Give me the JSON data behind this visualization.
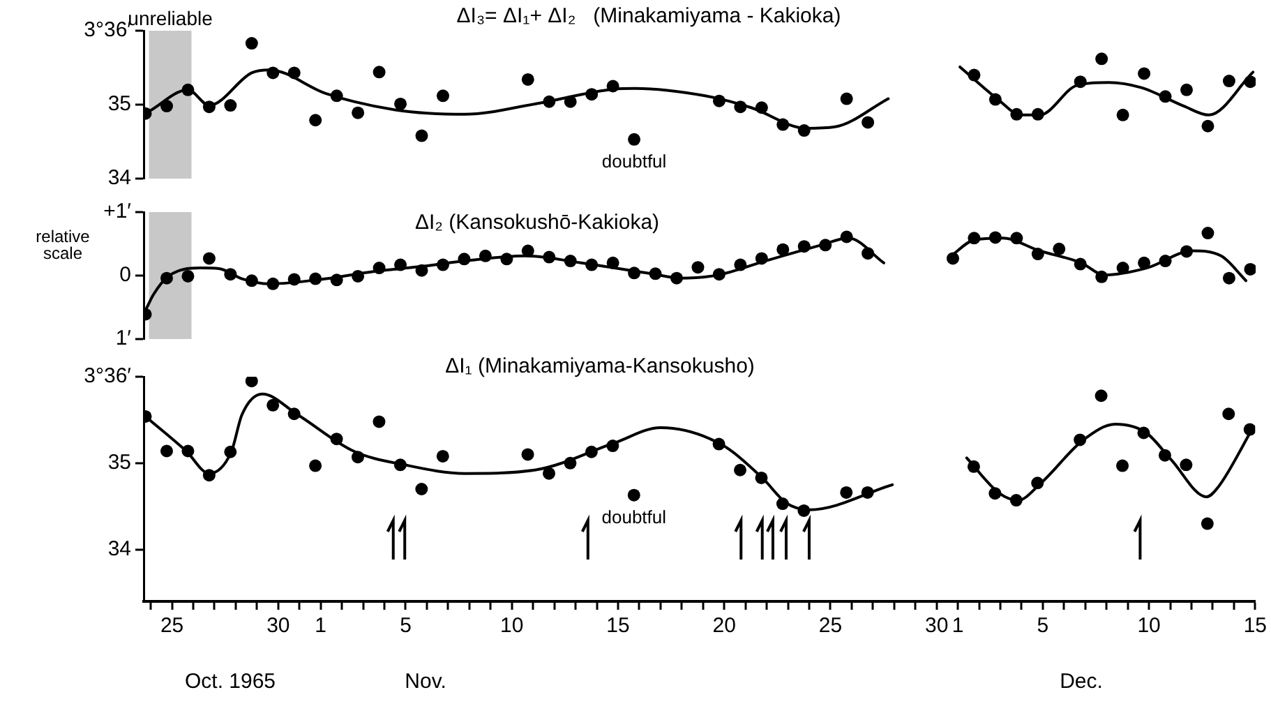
{
  "chart_data": [
    {
      "type": "scatter",
      "title": "ΔI₃= ΔI₁+ ΔI₂   (Minakamiyama - Kakioka)",
      "xlim": [
        "1965-10-23T16:00",
        "1965-12-15"
      ],
      "ylim": [
        34,
        36
      ],
      "yticks": [
        {
          "value": 36,
          "label": "3°36′"
        },
        35,
        34
      ],
      "tick_labels": "y",
      "series": [
        {
          "type": "scatter",
          "color": "#000000",
          "marker": "circle",
          "x": [
            "1965-10-23T18:00",
            "1965-10-24T18:00",
            "1965-10-25T18:00",
            "1965-10-26T18:00",
            "1965-10-27T18:00",
            "1965-10-28T18:00",
            "1965-10-29T18:00",
            "1965-10-30T18:00",
            "1965-10-31T18:00",
            "1965-11-01T18:00",
            "1965-11-02T18:00",
            "1965-11-03T18:00",
            "1965-11-04T18:00",
            "1965-11-05T18:00",
            "1965-11-06T18:00",
            "1965-11-10T18:00",
            "1965-11-11T18:00",
            "1965-11-12T18:00",
            "1965-11-13T18:00",
            "1965-11-14T18:00",
            "1965-11-15T18:00",
            "1965-11-19T18:00",
            "1965-11-20T18:00",
            "1965-11-21T18:00",
            "1965-11-22T18:00",
            "1965-11-23T18:00",
            "1965-11-25T18:00",
            "1965-11-26T18:00",
            "1965-12-01T18:00",
            "1965-12-02T18:00",
            "1965-12-03T18:00",
            "1965-12-04T18:00",
            "1965-12-06T18:00",
            "1965-12-07T18:00",
            "1965-12-08T18:00",
            "1965-12-09T18:00",
            "1965-12-10T18:00",
            "1965-12-11T18:00",
            "1965-12-12T18:00",
            "1965-12-13T18:00",
            "1965-12-14T18:00"
          ],
          "values": [
            34.88,
            34.98,
            35.2,
            34.97,
            34.99,
            35.83,
            35.43,
            35.43,
            34.79,
            35.12,
            34.89,
            35.44,
            35.01,
            34.58,
            35.12,
            35.34,
            35.04,
            35.04,
            35.14,
            35.25,
            34.53,
            35.05,
            34.97,
            34.96,
            34.73,
            34.65,
            35.08,
            34.76,
            35.4,
            35.07,
            34.87,
            34.87,
            35.31,
            35.62,
            34.86,
            35.42,
            35.11,
            35.2,
            34.71,
            35.32,
            35.31
          ]
        },
        {
          "type": "line",
          "color": "#000000",
          "marker": "none",
          "x": [
            "1965-10-23T22:00",
            "1965-10-25T18:00",
            "1965-10-26T18:00",
            "1965-10-28T18:00",
            "1965-10-29T14:00",
            "1965-11-01T06:00",
            "1965-11-04T12:00",
            "1965-11-07T19:00",
            "1965-11-11T02:00",
            "1965-11-14T19:00",
            "1965-11-15T19:00",
            "1965-11-19T02:00",
            "1965-11-21T06:00",
            "1965-11-23T21:00",
            "1965-11-25T05:00",
            "1965-11-27T17:00",
            "1965-11-29T00:00",
            "1965-12-01T02:00",
            "1965-12-02T21:00",
            "1965-12-03T23:00",
            "1965-12-04T20:00",
            "1965-12-06T14:00",
            "1965-12-08T02:00",
            "1965-12-09T15:00",
            "1965-12-11T15:00",
            "1965-12-12T19:00",
            "1965-12-14T21:00"
          ],
          "values": [
            34.91,
            35.2,
            34.99,
            35.43,
            35.47,
            35.15,
            34.93,
            34.87,
            35.01,
            35.21,
            35.22,
            35.12,
            34.96,
            34.68,
            34.7,
            35.08,
            null,
            35.51,
            35.07,
            34.86,
            34.86,
            35.26,
            35.3,
            35.23,
            34.98,
            34.86,
            35.44
          ]
        }
      ],
      "bands": [
        {
          "axis": "x",
          "from": "1965-10-23T22:00",
          "to": "1965-10-25T22:00",
          "label": "unreliable"
        }
      ],
      "annotations": [
        {
          "text": "doubtful",
          "x": "1965-11-15T18:00",
          "y": 34.53
        }
      ]
    },
    {
      "type": "scatter",
      "title": "ΔI₂ (Kansokushō-Kakioka)",
      "ylabel": "relative scale",
      "xlim": [
        "1965-10-23T16:00",
        "1965-12-15"
      ],
      "ylim": [
        -1,
        1
      ],
      "yticks": [
        {
          "value": 1,
          "label": "+1′"
        },
        0,
        {
          "value": -1,
          "label": "1′"
        }
      ],
      "tick_labels": "y",
      "series": [
        {
          "type": "scatter",
          "color": "#000000",
          "marker": "circle",
          "x": [
            "1965-10-23T18:00",
            "1965-10-24T18:00",
            "1965-10-25T18:00",
            "1965-10-26T18:00",
            "1965-10-27T18:00",
            "1965-10-28T18:00",
            "1965-10-29T18:00",
            "1965-10-30T18:00",
            "1965-10-31T18:00",
            "1965-11-01T18:00",
            "1965-11-02T18:00",
            "1965-11-03T18:00",
            "1965-11-04T18:00",
            "1965-11-05T18:00",
            "1965-11-06T18:00",
            "1965-11-07T18:00",
            "1965-11-08T18:00",
            "1965-11-09T18:00",
            "1965-11-10T18:00",
            "1965-11-11T18:00",
            "1965-11-12T18:00",
            "1965-11-13T18:00",
            "1965-11-14T18:00",
            "1965-11-15T18:00",
            "1965-11-16T18:00",
            "1965-11-17T18:00",
            "1965-11-18T18:00",
            "1965-11-19T18:00",
            "1965-11-20T18:00",
            "1965-11-21T18:00",
            "1965-11-22T18:00",
            "1965-11-23T18:00",
            "1965-11-24T18:00",
            "1965-11-25T18:00",
            "1965-11-26T18:00",
            "1965-11-30T18:00",
            "1965-12-01T18:00",
            "1965-12-02T18:00",
            "1965-12-03T18:00",
            "1965-12-04T18:00",
            "1965-12-05T18:00",
            "1965-12-06T18:00",
            "1965-12-07T18:00",
            "1965-12-08T18:00",
            "1965-12-09T18:00",
            "1965-12-10T18:00",
            "1965-12-11T18:00",
            "1965-12-12T18:00",
            "1965-12-13T18:00",
            "1965-12-14T18:00"
          ],
          "values": [
            -0.61,
            -0.04,
            -0.01,
            0.27,
            0.02,
            -0.08,
            -0.13,
            -0.06,
            -0.05,
            -0.07,
            -0.01,
            0.12,
            0.17,
            0.08,
            0.17,
            0.26,
            0.31,
            0.26,
            0.39,
            0.29,
            0.23,
            0.17,
            0.2,
            0.04,
            0.03,
            -0.04,
            0.13,
            0.02,
            0.17,
            0.27,
            0.41,
            0.46,
            0.48,
            0.61,
            0.35,
            0.27,
            0.59,
            0.6,
            0.59,
            0.34,
            0.42,
            0.18,
            -0.02,
            0.12,
            0.2,
            0.23,
            0.38,
            0.67,
            -0.04,
            0.1
          ]
        },
        {
          "type": "line",
          "color": "#000000",
          "marker": "none",
          "x": [
            "1965-10-23T18:00",
            "1965-10-24T03:00",
            "1965-10-24T19:00",
            "1965-10-26T08:00",
            "1965-10-27T05:00",
            "1965-10-28T07:00",
            "1965-10-29T14:00",
            "1965-11-01T06:00",
            "1965-11-03T10:00",
            "1965-11-05T15:00",
            "1965-11-07T19:00",
            "1965-11-10T15:00",
            "1965-11-13T06:00",
            "1965-11-16T13:00",
            "1965-11-17T23:00",
            "1965-11-19T17:00",
            "1965-11-21T22:00",
            "1965-11-24T13:00",
            "1965-11-25T20:00",
            "1965-11-27T12:00",
            "1965-11-29T00:00",
            "1965-11-30T16:00",
            "1965-12-01T18:00",
            "1965-12-03T02:00",
            "1965-12-04T20:00",
            "1965-12-06T19:00",
            "1965-12-07T21:00",
            "1965-12-09T21:00",
            "1965-12-12T01:00",
            "1965-12-13T09:00",
            "1965-12-14T13:00"
          ],
          "values": [
            -0.55,
            -0.3,
            -0.02,
            0.12,
            0.11,
            -0.05,
            -0.13,
            -0.05,
            0.06,
            0.14,
            0.23,
            0.31,
            0.2,
            0.03,
            -0.04,
            0.01,
            0.23,
            0.48,
            0.59,
            0.2,
            null,
            0.31,
            0.56,
            0.59,
            0.39,
            0.2,
            0.01,
            0.12,
            0.39,
            0.31,
            -0.08
          ]
        }
      ],
      "bands": [
        {
          "axis": "x",
          "from": "1965-10-23T22:00",
          "to": "1965-10-25T22:00"
        }
      ]
    },
    {
      "type": "scatter",
      "title": "ΔI₁ (Minakamiyama-Kansokusho)",
      "xlim": [
        "1965-10-23T16:00",
        "1965-12-15"
      ],
      "ylim": [
        33.4,
        36
      ],
      "yticks": [
        {
          "value": 36,
          "label": "3°36′"
        },
        35,
        34
      ],
      "xticks": [
        {
          "value": "1965-10-24",
          "label": null
        },
        {
          "value": "1965-10-25",
          "label": "25"
        },
        {
          "value": "1965-10-26",
          "label": null
        },
        {
          "value": "1965-10-27",
          "label": null
        },
        {
          "value": "1965-10-28",
          "label": null
        },
        {
          "value": "1965-10-29",
          "label": null
        },
        {
          "value": "1965-10-30",
          "label": "30"
        },
        {
          "value": "1965-10-31",
          "label": null
        },
        {
          "value": "1965-11-01",
          "label": "1"
        },
        {
          "value": "1965-11-02",
          "label": null
        },
        {
          "value": "1965-11-03",
          "label": null
        },
        {
          "value": "1965-11-04",
          "label": null
        },
        {
          "value": "1965-11-05",
          "label": "5"
        },
        {
          "value": "1965-11-06",
          "label": null
        },
        {
          "value": "1965-11-07",
          "label": null
        },
        {
          "value": "1965-11-08",
          "label": null
        },
        {
          "value": "1965-11-09",
          "label": null
        },
        {
          "value": "1965-11-10",
          "label": "10"
        },
        {
          "value": "1965-11-11",
          "label": null
        },
        {
          "value": "1965-11-12",
          "label": null
        },
        {
          "value": "1965-11-13",
          "label": null
        },
        {
          "value": "1965-11-14",
          "label": null
        },
        {
          "value": "1965-11-15",
          "label": "15"
        },
        {
          "value": "1965-11-16",
          "label": null
        },
        {
          "value": "1965-11-17",
          "label": null
        },
        {
          "value": "1965-11-18",
          "label": null
        },
        {
          "value": "1965-11-19",
          "label": null
        },
        {
          "value": "1965-11-20",
          "label": "20"
        },
        {
          "value": "1965-11-21",
          "label": null
        },
        {
          "value": "1965-11-22",
          "label": null
        },
        {
          "value": "1965-11-23",
          "label": null
        },
        {
          "value": "1965-11-24",
          "label": null
        },
        {
          "value": "1965-11-25",
          "label": "25"
        },
        {
          "value": "1965-11-26",
          "label": null
        },
        {
          "value": "1965-11-27",
          "label": null
        },
        {
          "value": "1965-11-28",
          "label": null
        },
        {
          "value": "1965-11-29",
          "label": null
        },
        {
          "value": "1965-11-30",
          "label": "30"
        },
        {
          "value": "1965-12-01",
          "label": "1"
        },
        {
          "value": "1965-12-02",
          "label": null
        },
        {
          "value": "1965-12-03",
          "label": null
        },
        {
          "value": "1965-12-04",
          "label": null
        },
        {
          "value": "1965-12-05",
          "label": "5"
        },
        {
          "value": "1965-12-06",
          "label": null
        },
        {
          "value": "1965-12-07",
          "label": null
        },
        {
          "value": "1965-12-08",
          "label": null
        },
        {
          "value": "1965-12-09",
          "label": null
        },
        {
          "value": "1965-12-10",
          "label": "10"
        },
        {
          "value": "1965-12-11",
          "label": null
        },
        {
          "value": "1965-12-12",
          "label": null
        },
        {
          "value": "1965-12-13",
          "label": null
        },
        {
          "value": "1965-12-14",
          "label": null
        },
        {
          "value": "1965-12-15",
          "label": "15"
        }
      ],
      "series": [
        {
          "type": "scatter",
          "color": "#000000",
          "marker": "circle",
          "x": [
            "1965-10-23T18:00",
            "1965-10-24T18:00",
            "1965-10-25T18:00",
            "1965-10-26T18:00",
            "1965-10-27T18:00",
            "1965-10-28T18:00",
            "1965-10-29T18:00",
            "1965-10-30T18:00",
            "1965-10-31T18:00",
            "1965-11-01T18:00",
            "1965-11-02T18:00",
            "1965-11-03T18:00",
            "1965-11-04T18:00",
            "1965-11-05T18:00",
            "1965-11-06T18:00",
            "1965-11-10T18:00",
            "1965-11-11T18:00",
            "1965-11-12T18:00",
            "1965-11-13T18:00",
            "1965-11-14T18:00",
            "1965-11-15T18:00",
            "1965-11-19T18:00",
            "1965-11-20T18:00",
            "1965-11-21T18:00",
            "1965-11-22T18:00",
            "1965-11-23T18:00",
            "1965-11-25T18:00",
            "1965-11-26T18:00",
            "1965-12-01T18:00",
            "1965-12-02T18:00",
            "1965-12-03T18:00",
            "1965-12-04T18:00",
            "1965-12-06T18:00",
            "1965-12-07T18:00",
            "1965-12-08T18:00",
            "1965-12-09T18:00",
            "1965-12-10T18:00",
            "1965-12-11T18:00",
            "1965-12-12T18:00",
            "1965-12-13T18:00",
            "1965-12-14T18:00"
          ],
          "values": [
            35.54,
            35.14,
            35.14,
            34.86,
            35.13,
            35.95,
            35.67,
            35.57,
            34.97,
            35.28,
            35.07,
            35.48,
            34.98,
            34.7,
            35.08,
            35.1,
            34.88,
            35.0,
            35.13,
            35.2,
            34.63,
            35.22,
            34.92,
            34.83,
            34.53,
            34.45,
            34.66,
            34.66,
            34.96,
            34.65,
            34.57,
            34.77,
            35.27,
            35.78,
            34.97,
            35.35,
            35.09,
            34.98,
            34.3,
            35.57,
            35.39
          ]
        },
        {
          "type": "line",
          "color": "#000000",
          "marker": "none",
          "x": [
            "1965-10-23T18:00",
            "1965-10-25T16:00",
            "1965-10-26T18:00",
            "1965-10-27T19:00",
            "1965-10-28T07:00",
            "1965-10-29T06:00",
            "1965-10-30T22:00",
            "1965-11-02T13:00",
            "1965-11-04T23:00",
            "1965-11-07T19:00",
            "1965-11-11T02:00",
            "1965-11-14T19:00",
            "1965-11-17T00:00",
            "1965-11-19T20:00",
            "1965-11-21T19:00",
            "1965-11-22T22:00",
            "1965-11-24T00:00",
            "1965-11-27T22:00",
            "1965-11-29T00:00",
            "1965-12-01T10:00",
            "1965-12-02T23:00",
            "1965-12-03T20:00",
            "1965-12-04T22:00",
            "1965-12-06T22:00",
            "1965-12-08T10:00",
            "1965-12-09T21:00",
            "1965-12-11T01:00",
            "1965-12-12T17:00",
            "1965-12-13T06:00",
            "1965-12-14T21:00"
          ],
          "values": [
            35.54,
            35.14,
            34.88,
            35.13,
            35.56,
            35.8,
            35.56,
            35.14,
            34.98,
            34.88,
            34.92,
            35.23,
            35.41,
            35.22,
            34.83,
            34.54,
            34.46,
            34.75,
            null,
            35.06,
            34.65,
            34.57,
            34.77,
            35.27,
            35.45,
            35.35,
            35.04,
            34.61,
            34.72,
            35.4
          ]
        }
      ],
      "ref_lines": [
        {
          "axis": "x",
          "value": "1965-11-04T10:00"
        },
        {
          "axis": "x",
          "value": "1965-11-04T23:00"
        },
        {
          "axis": "x",
          "value": "1965-11-13T14:00"
        },
        {
          "axis": "x",
          "value": "1965-11-20T19:00"
        },
        {
          "axis": "x",
          "value": "1965-11-21T19:00"
        },
        {
          "axis": "x",
          "value": "1965-11-22T07:00"
        },
        {
          "axis": "x",
          "value": "1965-11-22T22:00"
        },
        {
          "axis": "x",
          "value": "1965-11-24T00:00"
        },
        {
          "axis": "x",
          "value": "1965-12-09T14:00"
        }
      ],
      "annotations": [
        {
          "text": "doubtful",
          "x": "1965-11-15T18:00",
          "y": 34.63
        },
        "Oct. 1965",
        "Nov.",
        "Dec."
      ]
    }
  ]
}
